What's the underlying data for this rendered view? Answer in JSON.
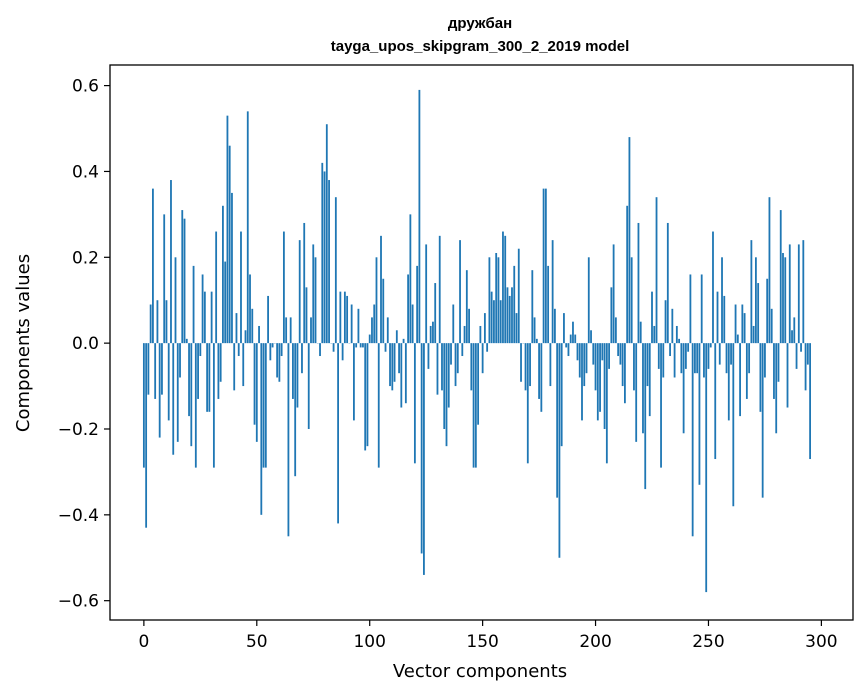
{
  "chart_data": {
    "type": "bar",
    "title": "дружбан",
    "subtitle": "tayga_upos_skipgram_300_2_2019 model",
    "xlabel": "Vector components",
    "ylabel": "Components values",
    "xlim": [
      -15,
      314
    ],
    "ylim": [
      -0.645,
      0.648
    ],
    "xticks": [
      0,
      50,
      100,
      150,
      200,
      250,
      300
    ],
    "yticks": [
      -0.6,
      -0.4,
      -0.2,
      0.0,
      0.2,
      0.4,
      0.6
    ],
    "ytick_labels": [
      "−0.6",
      "−0.4",
      "−0.2",
      "0.0",
      "0.2",
      "0.4",
      "0.6"
    ],
    "bar_color": "#1f77b4",
    "grid": false,
    "legend": false,
    "values": [
      -0.29,
      -0.43,
      -0.12,
      0.09,
      0.36,
      -0.13,
      0.1,
      -0.22,
      -0.12,
      0.3,
      0.1,
      -0.18,
      0.38,
      -0.26,
      0.2,
      -0.23,
      -0.08,
      0.31,
      0.29,
      0.01,
      -0.17,
      -0.24,
      0.18,
      -0.29,
      -0.13,
      -0.03,
      0.16,
      0.12,
      -0.16,
      -0.16,
      0.12,
      -0.29,
      0.26,
      -0.13,
      -0.09,
      0.32,
      0.19,
      0.53,
      0.46,
      0.35,
      -0.11,
      0.07,
      -0.03,
      0.26,
      -0.1,
      0.03,
      0.54,
      0.16,
      0.08,
      -0.19,
      -0.23,
      0.04,
      -0.4,
      -0.29,
      -0.29,
      0.11,
      -0.04,
      -0.01,
      0.0,
      -0.08,
      -0.09,
      -0.03,
      0.26,
      0.06,
      -0.45,
      0.06,
      -0.13,
      -0.31,
      -0.15,
      0.24,
      -0.07,
      0.28,
      0.13,
      -0.2,
      0.06,
      0.23,
      0.2,
      0.0,
      -0.03,
      0.42,
      0.4,
      0.51,
      0.38,
      0.0,
      -0.02,
      0.34,
      -0.42,
      0.12,
      -0.04,
      0.12,
      0.11,
      0.0,
      0.09,
      -0.18,
      -0.01,
      0.08,
      -0.01,
      -0.01,
      -0.25,
      -0.24,
      0.02,
      0.06,
      0.09,
      0.2,
      -0.29,
      0.25,
      0.15,
      -0.02,
      0.06,
      -0.1,
      -0.11,
      -0.09,
      0.03,
      -0.07,
      -0.15,
      0.01,
      -0.14,
      0.16,
      0.3,
      0.09,
      -0.28,
      0.18,
      0.59,
      -0.49,
      -0.54,
      0.23,
      -0.06,
      0.04,
      0.05,
      0.14,
      -0.12,
      0.25,
      -0.11,
      -0.2,
      -0.24,
      -0.15,
      -0.05,
      0.09,
      -0.1,
      -0.07,
      0.24,
      -0.03,
      0.04,
      0.17,
      0.08,
      -0.11,
      -0.29,
      -0.29,
      -0.19,
      0.04,
      -0.07,
      0.07,
      -0.02,
      0.2,
      0.12,
      0.1,
      0.21,
      0.2,
      0.1,
      0.26,
      0.25,
      0.13,
      0.11,
      0.13,
      0.18,
      0.07,
      0.22,
      -0.09,
      0.0,
      -0.11,
      -0.28,
      -0.1,
      0.17,
      0.06,
      0.01,
      -0.13,
      -0.16,
      0.36,
      0.36,
      0.18,
      -0.1,
      0.24,
      0.08,
      -0.36,
      -0.5,
      -0.24,
      0.07,
      -0.01,
      -0.03,
      0.02,
      0.05,
      0.02,
      -0.04,
      -0.08,
      -0.18,
      -0.1,
      -0.07,
      0.2,
      0.03,
      -0.05,
      -0.11,
      -0.18,
      -0.16,
      -0.04,
      -0.2,
      -0.28,
      -0.06,
      0.13,
      0.23,
      0.06,
      -0.03,
      -0.05,
      -0.1,
      -0.14,
      0.32,
      0.48,
      0.2,
      -0.11,
      -0.23,
      0.28,
      0.05,
      -0.21,
      -0.34,
      -0.1,
      -0.17,
      0.12,
      0.04,
      0.34,
      -0.06,
      -0.29,
      -0.08,
      0.1,
      0.28,
      -0.03,
      0.08,
      -0.08,
      0.04,
      0.01,
      -0.07,
      -0.21,
      -0.06,
      -0.02,
      0.16,
      -0.45,
      -0.07,
      -0.07,
      -0.33,
      0.16,
      -0.08,
      -0.58,
      -0.06,
      -0.01,
      0.26,
      -0.27,
      0.12,
      -0.05,
      0.2,
      0.11,
      -0.07,
      -0.18,
      -0.05,
      -0.38,
      0.09,
      0.02,
      -0.17,
      0.09,
      0.07,
      -0.13,
      -0.07,
      0.24,
      0.04,
      0.2,
      0.14,
      -0.16,
      -0.36,
      -0.08,
      0.15,
      0.34,
      0.08,
      -0.13,
      -0.21,
      -0.09,
      0.31,
      0.21,
      0.2,
      -0.15,
      0.23,
      0.03,
      0.06,
      -0.06,
      0.23,
      -0.02,
      0.24,
      -0.11,
      -0.05,
      -0.27
    ],
    "x_start": 0
  }
}
